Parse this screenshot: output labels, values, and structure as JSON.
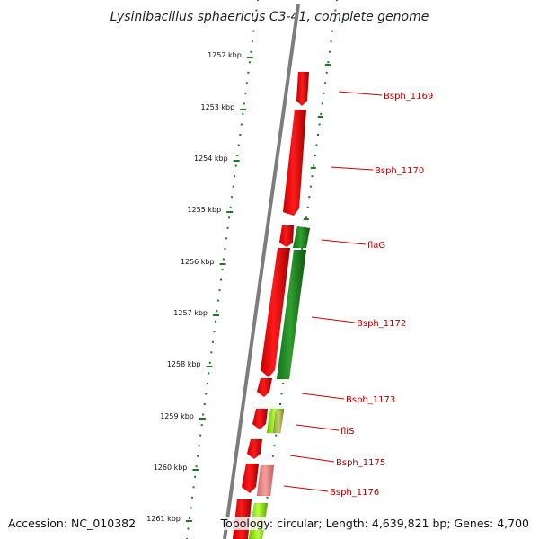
{
  "map": {
    "title": "Lysinibacillus sphaericus C3-41, complete genome",
    "accession": "Accession: NC_010382",
    "topology_info": "Topology: circular; Length: 4,639,821 bp; Genes: 4,700",
    "ticks": [
      "1252 kbp",
      "1253 kbp",
      "1254 kbp",
      "1255 kbp",
      "1256 kbp",
      "1257 kbp",
      "1258 kbp",
      "1259 kbp",
      "1260 kbp",
      "1261 kbp"
    ],
    "labels": [
      {
        "text": "Bsph_1169",
        "color": "#b00000"
      },
      {
        "text": "Bsph_1170",
        "color": "#b00000"
      },
      {
        "text": "flaG",
        "color": "#b00000"
      },
      {
        "text": "Bsph_1172",
        "color": "#b00000"
      },
      {
        "text": "Bsph_1173",
        "color": "#b00000"
      },
      {
        "text": "fliS",
        "color": "#b00000"
      },
      {
        "text": "Bsph_1175",
        "color": "#b00000"
      },
      {
        "text": "Bsph_1176",
        "color": "#b00000"
      }
    ],
    "colors": {
      "forward_strand": "#ee0000",
      "reverse_strand": "#1e8a1e",
      "light_red": "#ee8080",
      "light_green": "#88e000",
      "backbone": "#808080",
      "dots": "#1c7a1c"
    }
  }
}
